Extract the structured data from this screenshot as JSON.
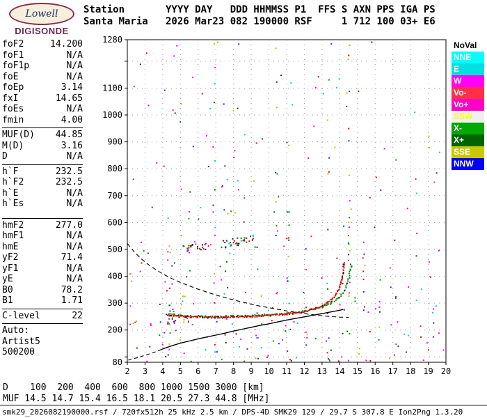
{
  "logo": {
    "name": "Lowell",
    "subtitle": "DIGISONDE"
  },
  "header": {
    "line1": "Station       YYYY DAY   DDD HHMMSS P1  FFS S AXN PPS IGA PS",
    "line2": "Santa Maria   2026 Mar23 082 190000 RSF     1 712 100 03+ E6"
  },
  "params": {
    "groups": [
      {
        "rows": [
          [
            "foF2",
            "14.200"
          ],
          [
            "foF1",
            "N/A"
          ],
          [
            "foF1p",
            "N/A"
          ],
          [
            "foE",
            "N/A"
          ],
          [
            "foEp",
            "3.14"
          ],
          [
            "fxI",
            "14.65"
          ],
          [
            "foEs",
            "N/A"
          ],
          [
            "fmin",
            "4.00"
          ]
        ]
      },
      {
        "rows": [
          [
            "MUF(D)",
            "44.85"
          ],
          [
            "M(D)",
            "3.16"
          ],
          [
            "D",
            "N/A"
          ]
        ]
      },
      {
        "rows": [
          [
            "h`F",
            "232.5"
          ],
          [
            "h`F2",
            "232.5"
          ],
          [
            "h`E",
            "N/A"
          ],
          [
            "h`Es",
            "N/A"
          ]
        ]
      },
      {
        "gap": true,
        "rows": [
          [
            "hmF2",
            "277.0"
          ],
          [
            "hmF1",
            "N/A"
          ],
          [
            "hmE",
            "N/A"
          ],
          [
            "yF2",
            "71.4"
          ],
          [
            "yF1",
            "N/A"
          ],
          [
            "yE",
            "N/A"
          ],
          [
            "B0",
            "78.2"
          ],
          [
            "B1",
            "1.71"
          ]
        ]
      },
      {
        "rows": [
          [
            "C-level",
            "22"
          ]
        ]
      },
      {
        "rows": [
          [
            "Auto:",
            ""
          ],
          [
            "Artist5",
            ""
          ],
          [
            "500200",
            ""
          ]
        ]
      }
    ]
  },
  "legend": {
    "items": [
      {
        "label": "NoVal",
        "bg": "#FFFFFF",
        "fg": "#000000"
      },
      {
        "label": "NNE",
        "bg": "#00FFFF",
        "fg": "#FFFFFF"
      },
      {
        "label": "E",
        "bg": "#00E0E0",
        "fg": "#FFFFFF"
      },
      {
        "label": "W",
        "bg": "#FF00FF",
        "fg": "#FFFFFF"
      },
      {
        "label": "Vo-",
        "bg": "#FF3048",
        "fg": "#FFFFFF"
      },
      {
        "label": "Vo+",
        "bg": "#FF00C8",
        "fg": "#FFFFFF"
      },
      {
        "label": "SSW",
        "bg": "#F0F0F0",
        "fg": "#FFFF00"
      },
      {
        "label": "X-",
        "bg": "#00A800",
        "fg": "#FFFFFF"
      },
      {
        "label": "X+",
        "bg": "#006400",
        "fg": "#FFFFFF"
      },
      {
        "label": "SSE",
        "bg": "#C8C800",
        "fg": "#FFFFFF"
      },
      {
        "label": "NNW",
        "bg": "#0000FF",
        "fg": "#FFFFFF"
      }
    ]
  },
  "footer": {
    "fileline": "smk29_2026082190000.rsf / 720fx512h 25 kHz 2.5 km / DPS-4D SMK29 129 / 29.7 S 307.8 E Ion2Png 1.3.20"
  },
  "chart_data": {
    "type": "scatter",
    "title": "",
    "xlabel": "",
    "ylabel": "",
    "xlim": [
      2,
      20
    ],
    "ylim": [
      80,
      1280
    ],
    "grid": true,
    "x_ticks": [
      2,
      3,
      4,
      5,
      6,
      7,
      8,
      9,
      10,
      11,
      12,
      13,
      14,
      15,
      16,
      17,
      18,
      19,
      20
    ],
    "y_ticks": [
      80,
      100,
      200,
      300,
      400,
      500,
      600,
      700,
      800,
      900,
      1000,
      1100,
      1200,
      1280
    ],
    "y_tick_labels": [
      80,
      200,
      300,
      400,
      500,
      600,
      700,
      800,
      900,
      1000,
      1100,
      1280
    ],
    "muf_table": {
      "d_label": "D",
      "muf_label": "MUF",
      "distances_km": [
        100,
        200,
        400,
        600,
        800,
        1000,
        1500,
        3000
      ],
      "muf_mhz": [
        "14.5",
        "14.7",
        "15.4",
        "16.5",
        "18.1",
        "20.5",
        "27.3",
        "44.8"
      ],
      "d_unit": "[km]",
      "muf_unit": "[MHz]"
    },
    "series": [
      {
        "name": "noise",
        "render": "noise",
        "seed": 823190,
        "size": 2,
        "colors": [
          "#00CFCF",
          "#00A000",
          "#E00010",
          "#FF00FF",
          "#2A2AE0",
          "#BFBF00",
          "#005F00",
          "#FF00C8"
        ],
        "speckle_count": 230,
        "speckle_power": 1.9,
        "stripes": [
          {
            "f": 4.35,
            "count": 14,
            "km": [
              90,
              620
            ]
          },
          {
            "f": 4.6,
            "count": 6,
            "km": [
              200,
              460
            ]
          },
          {
            "f": 5.05,
            "count": 7,
            "km": [
              150,
              1250
            ]
          },
          {
            "f": 5.5,
            "count": 5,
            "km": [
              300,
              900
            ]
          },
          {
            "f": 6.9,
            "count": 16,
            "km": [
              90,
              1270
            ]
          },
          {
            "f": 7.55,
            "count": 7,
            "km": [
              120,
              700
            ]
          },
          {
            "f": 8.3,
            "count": 4,
            "km": [
              700,
              1270
            ]
          },
          {
            "f": 9.35,
            "count": 6,
            "km": [
              100,
              520
            ]
          },
          {
            "f": 10.45,
            "count": 8,
            "km": [
              150,
              1270
            ]
          },
          {
            "f": 11.1,
            "count": 12,
            "km": [
              90,
              720
            ]
          },
          {
            "f": 12.15,
            "count": 5,
            "km": [
              100,
              420
            ]
          },
          {
            "f": 13.35,
            "count": 9,
            "km": [
              90,
              1160
            ]
          },
          {
            "f": 14.5,
            "count": 20,
            "km": [
              90,
              1260
            ]
          },
          {
            "f": 15.35,
            "count": 9,
            "km": [
              100,
              640
            ]
          },
          {
            "f": 16.3,
            "count": 4,
            "km": [
              120,
              420
            ]
          },
          {
            "f": 17.15,
            "count": 4,
            "km": [
              100,
              360
            ]
          },
          {
            "f": 18.35,
            "count": 4,
            "km": [
              100,
              920
            ]
          },
          {
            "f": 19.3,
            "count": 3,
            "km": [
              110,
              310
            ]
          }
        ],
        "clusters": [
          {
            "f": [
              4.2,
              4.9
            ],
            "km": [
              218,
              246
            ],
            "count": 9
          },
          {
            "f": [
              5.0,
              5.7
            ],
            "km": [
              228,
              248
            ],
            "count": 5
          },
          {
            "f": [
              2.1,
              2.6
            ],
            "km": [
              210,
              420
            ],
            "count": 5
          }
        ]
      },
      {
        "name": "transmission-curve",
        "render": "dashline",
        "color": "#000000",
        "width": 1.1,
        "dash": "6,4",
        "points": [
          [
            2.0,
            522
          ],
          [
            2.4,
            490
          ],
          [
            2.8,
            464
          ],
          [
            3.2,
            443
          ],
          [
            3.6,
            425
          ],
          [
            4,
            409
          ],
          [
            4.5,
            392
          ],
          [
            5,
            377
          ],
          [
            5.5,
            364
          ],
          [
            6,
            352
          ],
          [
            6.5,
            341
          ],
          [
            7,
            330
          ],
          [
            7.5,
            321
          ],
          [
            8,
            312
          ],
          [
            8.5,
            304
          ],
          [
            9,
            296
          ],
          [
            9.5,
            289
          ],
          [
            10,
            283
          ],
          [
            10.5,
            277
          ],
          [
            11,
            271
          ],
          [
            11.5,
            266
          ],
          [
            12,
            261
          ],
          [
            12.5,
            257
          ],
          [
            13,
            253
          ],
          [
            13.5,
            250
          ],
          [
            14,
            248
          ],
          [
            14.5,
            247
          ]
        ]
      },
      {
        "name": "profile-model-e-region",
        "render": "dashline",
        "color": "#000000",
        "width": 1.1,
        "dash": "5,4",
        "points": [
          [
            2.05,
            88
          ],
          [
            2.4,
            94
          ],
          [
            2.8,
            102
          ],
          [
            3.2,
            110
          ],
          [
            3.6,
            119
          ],
          [
            3.9,
            127
          ]
        ]
      },
      {
        "name": "second-hop-echo-1",
        "render": "band",
        "colors": [
          "#E00010",
          "#007A00",
          "#222222",
          "#FF00FF"
        ],
        "count": 26,
        "from": [
          5.2,
          503
        ],
        "to": [
          6.6,
          513
        ],
        "jitter": 5,
        "size": 2
      },
      {
        "name": "second-hop-echo-2",
        "render": "band",
        "colors": [
          "#E00010",
          "#007A00",
          "#222222",
          "#00CFCF"
        ],
        "count": 38,
        "from": [
          7.35,
          518
        ],
        "to": [
          9.15,
          540
        ],
        "jitter": 6,
        "size": 2
      },
      {
        "name": "true-height-profile",
        "render": "line",
        "color": "#000000",
        "width": 1.4,
        "points": [
          [
            3.9,
            127
          ],
          [
            4.4,
            139
          ],
          [
            5,
            151
          ],
          [
            5.5,
            159
          ],
          [
            6,
            167
          ],
          [
            6.5,
            174
          ],
          [
            7,
            181
          ],
          [
            7.5,
            188
          ],
          [
            8,
            196
          ],
          [
            8.5,
            203
          ],
          [
            9,
            210
          ],
          [
            9.5,
            217
          ],
          [
            10,
            223
          ],
          [
            10.5,
            230
          ],
          [
            11,
            237
          ],
          [
            11.5,
            243
          ],
          [
            12,
            249
          ],
          [
            12.5,
            255
          ],
          [
            13,
            261
          ],
          [
            13.4,
            266
          ],
          [
            13.8,
            271
          ],
          [
            14.05,
            274
          ],
          [
            14.2,
            277
          ]
        ]
      },
      {
        "name": "x-trace",
        "render": "dots",
        "color": "#008800",
        "mix": [
          "#004400"
        ],
        "mix_prob": 0.2,
        "size": 2,
        "step": 2.4,
        "jitter": 2.0,
        "points": [
          [
            4.3,
            260
          ],
          [
            5,
            253
          ],
          [
            6,
            251
          ],
          [
            7,
            250
          ],
          [
            8,
            251
          ],
          [
            9,
            253
          ],
          [
            10,
            257
          ],
          [
            10.8,
            260
          ],
          [
            11.4,
            264
          ],
          [
            12,
            270
          ],
          [
            12.5,
            277
          ],
          [
            13,
            286
          ],
          [
            13.4,
            297
          ],
          [
            13.75,
            311
          ],
          [
            14.05,
            328
          ],
          [
            14.3,
            350
          ],
          [
            14.45,
            375
          ],
          [
            14.55,
            402
          ],
          [
            14.62,
            428
          ],
          [
            14.66,
            450
          ]
        ]
      },
      {
        "name": "o-trace",
        "render": "dots",
        "color": "#E80000",
        "mix": [
          "#8B0000",
          "#161616"
        ],
        "mix_prob": 0.25,
        "size": 2,
        "step": 1.7,
        "jitter": 2.2,
        "points": [
          [
            4.2,
            257
          ],
          [
            4.4,
            253
          ],
          [
            4.7,
            251
          ],
          [
            5,
            250
          ],
          [
            5.5,
            249
          ],
          [
            6,
            248
          ],
          [
            6.5,
            247
          ],
          [
            7,
            247
          ],
          [
            7.5,
            247
          ],
          [
            8,
            248
          ],
          [
            8.5,
            249
          ],
          [
            9,
            250
          ],
          [
            9.5,
            252
          ],
          [
            10,
            254
          ],
          [
            10.5,
            256
          ],
          [
            11,
            259
          ],
          [
            11.5,
            263
          ],
          [
            12,
            269
          ],
          [
            12.4,
            276
          ],
          [
            12.8,
            285
          ],
          [
            13.1,
            294
          ],
          [
            13.4,
            306
          ],
          [
            13.65,
            320
          ],
          [
            13.85,
            338
          ],
          [
            14.0,
            360
          ],
          [
            14.1,
            386
          ],
          [
            14.17,
            412
          ],
          [
            14.22,
            438
          ],
          [
            14.25,
            455
          ]
        ]
      }
    ]
  }
}
